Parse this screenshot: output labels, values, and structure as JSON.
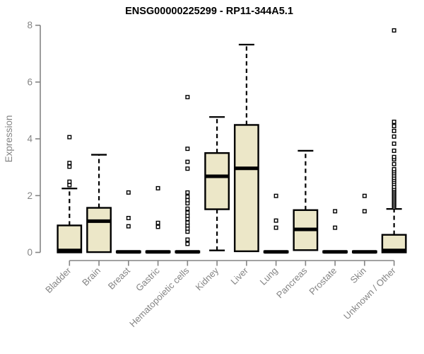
{
  "chart_data": {
    "type": "boxplot",
    "title": "ENSG00000225299 - RP11-344A5.1",
    "ylabel": "Expression",
    "xlabel": "",
    "ylim": [
      0,
      8
    ],
    "yticks": [
      "0",
      "2",
      "4",
      "6",
      "8"
    ],
    "grid": false,
    "legend": "none",
    "colors": {
      "box_fill": "#ece7c8",
      "box_border": "#000000",
      "median": "#000000",
      "whisker": "#000000",
      "outlier_stroke": "#000000",
      "outlier_fill": "#ffffff",
      "axis": "#848484",
      "tick_label": "#848484",
      "title": "#000000",
      "background": "#ffffff"
    },
    "boxes": [
      {
        "category": "Bladder",
        "low": 0,
        "q1": 0,
        "median": 0.07,
        "q3": 0.95,
        "high": 2.25,
        "outliers": [
          2.37,
          2.49,
          3.02,
          3.15,
          4.06
        ]
      },
      {
        "category": "Brain",
        "low": 0.01,
        "q1": 0.01,
        "median": 1.1,
        "q3": 1.57,
        "high": 3.44,
        "outliers": []
      },
      {
        "category": "Breast",
        "low": 0,
        "q1": 0,
        "median": 0.02,
        "q3": 0.04,
        "high": 0.04,
        "outliers": [
          0.92,
          1.21,
          2.11
        ]
      },
      {
        "category": "Gastric",
        "low": 0,
        "q1": 0,
        "median": 0.02,
        "q3": 0.04,
        "high": 0.04,
        "outliers": [
          0.9,
          1.04,
          2.26
        ]
      },
      {
        "category": "Hematopoietic cells",
        "low": 0,
        "q1": 0,
        "median": 0.02,
        "q3": 0.04,
        "high": 0.04,
        "outliers": [
          0.3,
          0.45,
          0.73,
          0.84,
          0.95,
          1.05,
          1.18,
          1.29,
          1.4,
          1.54,
          1.73,
          1.84,
          1.96,
          2.11,
          2.95,
          3.19,
          3.65,
          5.47
        ]
      },
      {
        "category": "Kidney",
        "low": 0.07,
        "q1": 1.52,
        "median": 2.68,
        "q3": 3.5,
        "high": 4.77,
        "outliers": []
      },
      {
        "category": "Liver",
        "low": 0.04,
        "q1": 0.04,
        "median": 2.96,
        "q3": 4.49,
        "high": 7.32,
        "outliers": []
      },
      {
        "category": "Lung",
        "low": 0,
        "q1": 0,
        "median": 0.02,
        "q3": 0.04,
        "high": 0.04,
        "outliers": [
          0.87,
          1.12,
          1.99
        ]
      },
      {
        "category": "Pancreas",
        "low": 0.08,
        "q1": 0.08,
        "median": 0.81,
        "q3": 1.49,
        "high": 3.58,
        "outliers": []
      },
      {
        "category": "Prostate",
        "low": 0,
        "q1": 0,
        "median": 0.02,
        "q3": 0.04,
        "high": 0.04,
        "outliers": [
          0.87,
          1.45
        ]
      },
      {
        "category": "Skin",
        "low": 0,
        "q1": 0,
        "median": 0.02,
        "q3": 0.04,
        "high": 0.04,
        "outliers": [
          1.45,
          1.99
        ]
      },
      {
        "category": "Unknown / Other",
        "low": 0,
        "q1": 0,
        "median": 0.07,
        "q3": 0.62,
        "high": 1.53,
        "outliers": [
          1.59,
          1.64,
          1.69,
          1.74,
          1.79,
          1.84,
          1.89,
          1.94,
          1.99,
          2.04,
          2.09,
          2.14,
          2.19,
          2.24,
          2.31,
          2.41,
          2.49,
          2.56,
          2.63,
          2.71,
          2.79,
          2.86,
          2.93,
          3.11,
          3.28,
          3.36,
          3.58,
          3.83,
          4.08,
          4.28,
          4.45,
          4.6,
          7.82
        ]
      }
    ]
  }
}
